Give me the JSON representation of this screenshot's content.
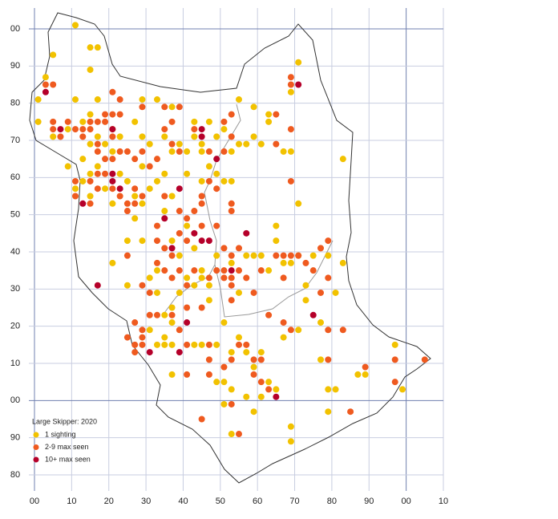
{
  "chart_data": {
    "type": "scatter",
    "legend_title": "Large Skipper:  2020",
    "legend": "lower left",
    "grid": true,
    "xlim": [
      0,
      110
    ],
    "ylim": [
      -20,
      100
    ],
    "xticks": [
      {
        "value": 0,
        "label": "00"
      },
      10,
      20,
      30,
      40,
      50,
      60,
      70,
      80,
      90,
      {
        "value": 100,
        "label": "00"
      },
      {
        "value": 110,
        "label": "10"
      }
    ],
    "yticks": [
      {
        "value": -20,
        "label": "80"
      },
      {
        "value": -10,
        "label": "90"
      },
      {
        "value": 0,
        "label": "00"
      },
      10,
      20,
      30,
      40,
      50,
      60,
      70,
      80,
      90,
      {
        "value": 100,
        "label": "00"
      }
    ],
    "series": [
      {
        "name": "1 sighting",
        "color": "#f2c200",
        "x": [
          11,
          5,
          15,
          17,
          15,
          71,
          3,
          1,
          11,
          17,
          29,
          33,
          55,
          59,
          69,
          37,
          1,
          5,
          9,
          13,
          15,
          17,
          19,
          21,
          15,
          23,
          27,
          29,
          31,
          35,
          37,
          39,
          41,
          43,
          45,
          47,
          49,
          51,
          53,
          55,
          57,
          59,
          63,
          63,
          67,
          69,
          71,
          83,
          17,
          21,
          23,
          25,
          27,
          29,
          31,
          33,
          35,
          37,
          35,
          41,
          45,
          47,
          49,
          51,
          53,
          45,
          11,
          13,
          15,
          19,
          21,
          37,
          39,
          41,
          43,
          45,
          47,
          49,
          53,
          55,
          57,
          59,
          61,
          63,
          65,
          65,
          67,
          69,
          71,
          73,
          73,
          75,
          77,
          79,
          81,
          83,
          21,
          25,
          29,
          31,
          33,
          35,
          37,
          37,
          39,
          41,
          43,
          45,
          47,
          51,
          31,
          33,
          35,
          37,
          43,
          45,
          49,
          53,
          55,
          57,
          59,
          61,
          63,
          37,
          49,
          53,
          57,
          59,
          61,
          65,
          53,
          69,
          69,
          67,
          71,
          77,
          79,
          81,
          79,
          87,
          89,
          97,
          99,
          35,
          51,
          51,
          27,
          25,
          29,
          61,
          33,
          9,
          15,
          13,
          43
        ],
        "values": [
          101,
          93,
          95,
          95,
          89,
          91,
          87,
          81,
          81,
          81,
          81,
          81,
          81,
          79,
          83,
          79,
          75,
          71,
          73,
          75,
          77,
          71,
          69,
          73,
          69,
          71,
          75,
          71,
          69,
          71,
          67,
          69,
          67,
          71,
          69,
          75,
          71,
          73,
          67,
          69,
          69,
          71,
          75,
          77,
          67,
          67,
          53,
          65,
          63,
          67,
          61,
          59,
          55,
          63,
          57,
          59,
          61,
          55,
          51,
          61,
          59,
          63,
          61,
          59,
          59,
          67,
          57,
          59,
          55,
          57,
          53,
          43,
          39,
          47,
          41,
          35,
          31,
          39,
          37,
          29,
          39,
          39,
          39,
          35,
          47,
          43,
          37,
          37,
          39,
          31,
          27,
          39,
          21,
          39,
          29,
          37,
          37,
          31,
          43,
          33,
          29,
          23,
          25,
          21,
          29,
          33,
          31,
          33,
          27,
          21,
          19,
          15,
          15,
          15,
          15,
          15,
          15,
          13,
          17,
          13,
          9,
          13,
          5,
          7,
          5,
          3,
          1,
          -3,
          1,
          3,
          -9,
          -7,
          -11,
          17,
          19,
          11,
          3,
          3,
          -3,
          7,
          7,
          15,
          3,
          17,
          5,
          -1,
          49,
          43,
          53,
          69,
          35,
          63,
          61,
          65,
          75
        ]
      },
      {
        "name": "2-9 max seen",
        "color": "#ef5a1f",
        "x": [
          3,
          5,
          21,
          23,
          35,
          39,
          29,
          5,
          5,
          7,
          9,
          11,
          13,
          15,
          15,
          17,
          19,
          21,
          23,
          19,
          13,
          17,
          21,
          17,
          19,
          21,
          23,
          25,
          27,
          29,
          31,
          33,
          35,
          37,
          37,
          39,
          43,
          47,
          51,
          53,
          53,
          51,
          65,
          69,
          69,
          69,
          65,
          15,
          17,
          17,
          19,
          21,
          23,
          25,
          27,
          29,
          11,
          11,
          15,
          25,
          27,
          35,
          39,
          41,
          43,
          45,
          45,
          47,
          49,
          53,
          53,
          33,
          33,
          35,
          37,
          41,
          45,
          49,
          51,
          53,
          55,
          51,
          51,
          53,
          53,
          49,
          39,
          41,
          43,
          47,
          33,
          35,
          37,
          29,
          31,
          33,
          27,
          29,
          31,
          27,
          25,
          29,
          29,
          27,
          37,
          41,
          45,
          39,
          41,
          47,
          47,
          47,
          41,
          51,
          53,
          55,
          57,
          59,
          61,
          61,
          63,
          55,
          45,
          53,
          65,
          67,
          67,
          67,
          69,
          69,
          71,
          73,
          75,
          77,
          79,
          79,
          77,
          79,
          83,
          79,
          89,
          85,
          97,
          97,
          105,
          59,
          63,
          61,
          25,
          39,
          69,
          55,
          57,
          53,
          59
        ],
        "values": [
          85,
          85,
          83,
          81,
          79,
          79,
          79,
          75,
          73,
          71,
          75,
          73,
          73,
          73,
          75,
          75,
          75,
          77,
          77,
          77,
          71,
          69,
          71,
          67,
          65,
          65,
          67,
          67,
          65,
          67,
          63,
          65,
          73,
          75,
          69,
          67,
          73,
          67,
          67,
          77,
          71,
          75,
          69,
          73,
          87,
          85,
          77,
          59,
          57,
          61,
          61,
          57,
          55,
          53,
          57,
          55,
          59,
          55,
          53,
          51,
          53,
          55,
          51,
          49,
          51,
          53,
          55,
          59,
          57,
          53,
          51,
          47,
          43,
          41,
          39,
          43,
          47,
          47,
          41,
          39,
          41,
          35,
          33,
          33,
          31,
          35,
          35,
          31,
          35,
          33,
          37,
          35,
          33,
          31,
          29,
          23,
          21,
          19,
          23,
          15,
          17,
          15,
          17,
          13,
          23,
          25,
          25,
          19,
          15,
          15,
          11,
          7,
          7,
          9,
          11,
          15,
          15,
          7,
          11,
          5,
          3,
          -9,
          -5,
          -1,
          39,
          39,
          33,
          21,
          19,
          39,
          39,
          37,
          35,
          41,
          43,
          33,
          29,
          19,
          19,
          11,
          9,
          -3,
          11,
          5,
          11,
          29,
          23,
          35,
          39,
          45,
          59,
          35,
          33,
          27,
          11
        ]
      },
      {
        "name": "10+ max seen",
        "color": "#b5002a",
        "x": [
          3,
          7,
          71,
          21,
          21,
          23,
          21,
          13,
          45,
          45,
          49,
          39,
          35,
          43,
          45,
          47,
          57,
          37,
          17,
          53,
          75,
          41,
          31,
          39,
          65
        ],
        "values": [
          83,
          73,
          85,
          73,
          59,
          57,
          61,
          53,
          73,
          71,
          65,
          57,
          49,
          45,
          43,
          43,
          45,
          41,
          31,
          35,
          23,
          21,
          13,
          13,
          1
        ]
      }
    ]
  }
}
